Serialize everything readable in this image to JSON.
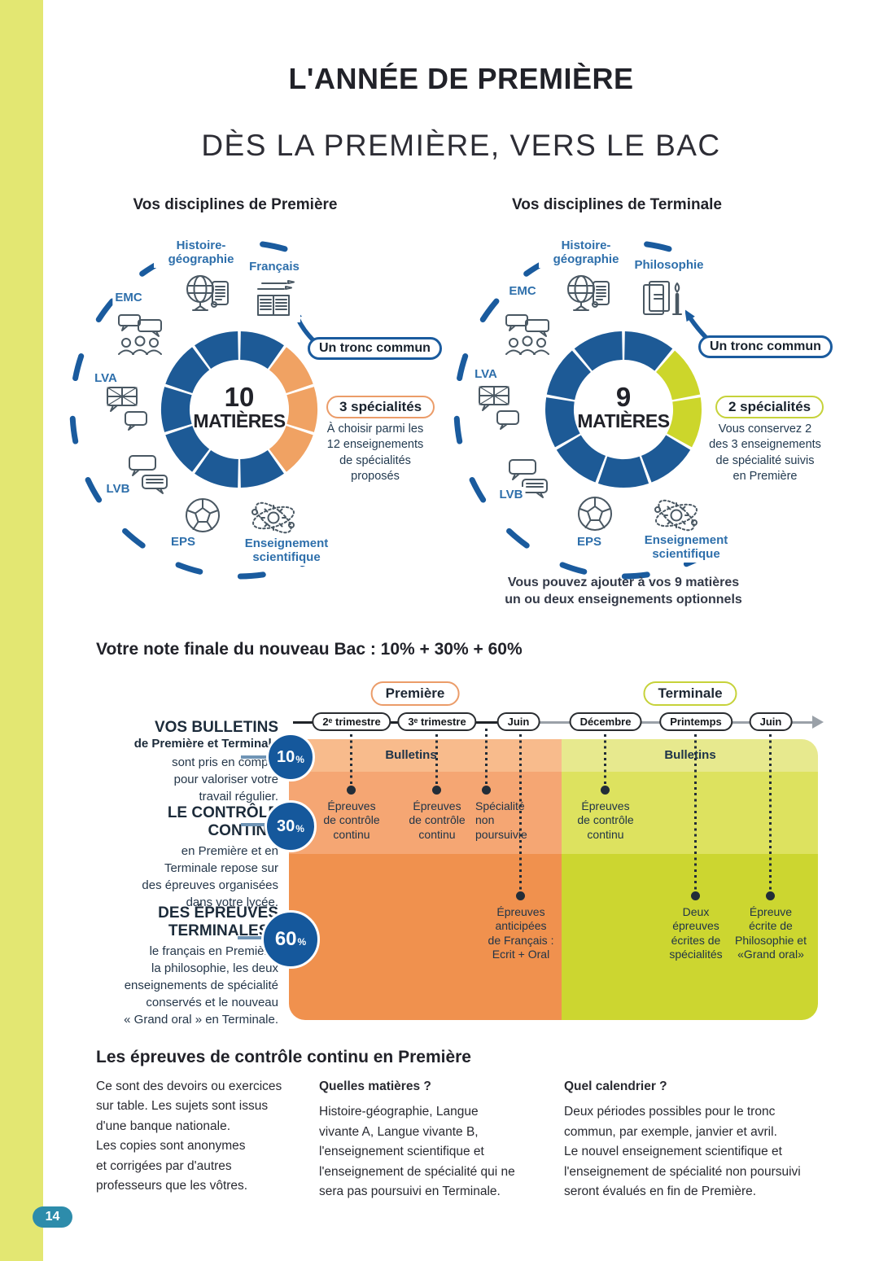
{
  "page": {
    "number": "14"
  },
  "header": {
    "title": "L'ANNÉE DE PREMIÈRE",
    "subtitle": "DÈS LA PREMIÈRE, VERS LE BAC"
  },
  "colors": {
    "accent_strip": "#e3e772",
    "navy": "#1d5a96",
    "orange": "#f0a263",
    "green": "#ccd62b",
    "teal_page_badge": "#2d8cab",
    "bands_orange": [
      "#f8bb8c",
      "#f5a673",
      "#f0914e"
    ],
    "bands_green": [
      "#e7e98e",
      "#dde25f",
      "#ccd630"
    ]
  },
  "premiere": {
    "title": "Vos disciplines de Première",
    "center_value": "10",
    "center_label": "MATIÈRES",
    "subjects": {
      "hist_geo": "Histoire-\ngéographie",
      "second": "Français",
      "emc": "EMC",
      "lva": "LVA",
      "lvb": "LVB",
      "eps": "EPS",
      "science": "Enseignement\nscientifique"
    },
    "tronc_badge": "Un tronc commun",
    "spec_badge": "3 spécialités",
    "spec_text": "À choisir parmi les\n12 enseignements\nde spécialités\nproposés"
  },
  "terminale": {
    "title": "Vos disciplines de Terminale",
    "center_value": "9",
    "center_label": "MATIÈRES",
    "subjects": {
      "hist_geo": "Histoire-\ngéographie",
      "second": "Philosophie",
      "emc": "EMC",
      "lva": "LVA",
      "lvb": "LVB",
      "eps": "EPS",
      "science": "Enseignement\nscientifique"
    },
    "tronc_badge": "Un tronc commun",
    "spec_badge": "2 spécialités",
    "spec_text": "Vous conservez 2\ndes 3 enseignements\nde spécialité suivis\nen Première",
    "footnote": "Vous pouvez ajouter à vos 9 matières\nun ou deux enseignements optionnels"
  },
  "timeline": {
    "heading": "Votre note finale du nouveau Bac : 10% + 30% + 60%",
    "period_premiere": "Première",
    "period_terminale": "Terminale",
    "pills": [
      "2ᵉ trimestre",
      "3ᵉ trimestre",
      "Juin",
      "Décembre",
      "Printemps",
      "Juin"
    ],
    "bulletins_premiere": "Bulletins",
    "bulletins_terminale": "Bulletins",
    "weights": [
      {
        "value": "10",
        "unit": "%",
        "head": "VOS BULLETINS",
        "subhead": "de Première et Terminale",
        "body": "sont pris en compte\npour valoriser votre\ntravail régulier."
      },
      {
        "value": "30",
        "unit": "%",
        "head": "LE CONTRÔLE\nCONTINU",
        "subhead": "",
        "body": "en Première et en\nTerminale repose sur\ndes épreuves organisées\ndans votre lycée."
      },
      {
        "value": "60",
        "unit": "%",
        "head": "DES ÉPREUVES\nTERMINALES :",
        "subhead": "",
        "body": "le français en Première,\nla philosophie, les deux\nenseignements de spécialité\nconservés et le nouveau\n« Grand oral » en Terminale."
      }
    ],
    "events": [
      {
        "label": "Épreuves\nde contrôle\ncontinu"
      },
      {
        "label": "Épreuves\nde contrôle\ncontinu"
      },
      {
        "label": "Spécialité\nnon\npoursuivie"
      },
      {
        "label": "Épreuves\nanticipées\nde Français :\nEcrit + Oral"
      },
      {
        "label": "Épreuves\nde contrôle\ncontinu"
      },
      {
        "label": "Deux\népreuves\nécrites de\nspécialités"
      },
      {
        "label": "Épreuve\nécrite de\nPhilosophie et\n«Grand oral»"
      }
    ]
  },
  "bottom": {
    "heading": "Les épreuves de contrôle continu en Première",
    "col1": "Ce sont des devoirs ou exercices\nsur table. Les sujets sont issus\nd'une banque nationale.\nLes copies sont anonymes\net corrigées par d'autres\nprofesseurs que les vôtres.",
    "col2_head": "Quelles matières ?",
    "col2": "Histoire-géographie, Langue\nvivante A, Langue vivante B,\nl'enseignement scientifique et\nl'enseignement de spécialité qui ne\nsera pas poursuivi en Terminale.",
    "col3_head": "Quel calendrier ?",
    "col3": "Deux périodes possibles pour le tronc\ncommun, par exemple, janvier et avril.\nLe nouvel enseignement scientifique et\nl'enseignement de spécialité non poursuivi\nseront évalués en fin de Première."
  },
  "chart_data": [
    {
      "type": "pie",
      "variant": "donut",
      "title": "Vos disciplines de Première",
      "center_label": "10 MATIÈRES",
      "segments_total": 10,
      "special_start": 1,
      "series": [
        {
          "name": "Tronc commun",
          "value": 7,
          "color": "#1d5a96"
        },
        {
          "name": "Spécialités",
          "value": 3,
          "color": "#f0a263"
        }
      ]
    },
    {
      "type": "pie",
      "variant": "donut",
      "title": "Vos disciplines de Terminale",
      "center_label": "9 MATIÈRES",
      "segments_total": 9,
      "special_start": 1,
      "series": [
        {
          "name": "Tronc commun",
          "value": 7,
          "color": "#1d5a96"
        },
        {
          "name": "Spécialités",
          "value": 2,
          "color": "#ccd62b"
        }
      ]
    },
    {
      "type": "timeline",
      "title": "Votre note finale du nouveau Bac : 10% + 30% + 60%",
      "periods": [
        {
          "name": "Première",
          "color": "#eb9c69",
          "milestones": [
            "2ᵉ trimestre",
            "3ᵉ trimestre",
            "Juin"
          ]
        },
        {
          "name": "Terminale",
          "color": "#c6d23a",
          "milestones": [
            "Décembre",
            "Printemps",
            "Juin"
          ]
        }
      ],
      "weights": [
        {
          "percent": 10,
          "label": "VOS BULLETINS"
        },
        {
          "percent": 30,
          "label": "LE CONTRÔLE CONTINU"
        },
        {
          "percent": 60,
          "label": "DES ÉPREUVES TERMINALES"
        }
      ],
      "events": [
        {
          "at": "2ᵉ trimestre (Première)",
          "label": "Épreuves de contrôle continu"
        },
        {
          "at": "3ᵉ trimestre (Première)",
          "label": "Épreuves de contrôle continu"
        },
        {
          "at": "Juin (Première)",
          "label": "Spécialité non poursuivie"
        },
        {
          "at": "Juin (Première)",
          "label": "Épreuves anticipées de Français : Ecrit + Oral"
        },
        {
          "at": "Décembre (Terminale)",
          "label": "Épreuves de contrôle continu"
        },
        {
          "at": "Printemps (Terminale)",
          "label": "Deux épreuves écrites de spécialités"
        },
        {
          "at": "Juin (Terminale)",
          "label": "Épreuve écrite de Philosophie et «Grand oral»"
        }
      ]
    }
  ]
}
